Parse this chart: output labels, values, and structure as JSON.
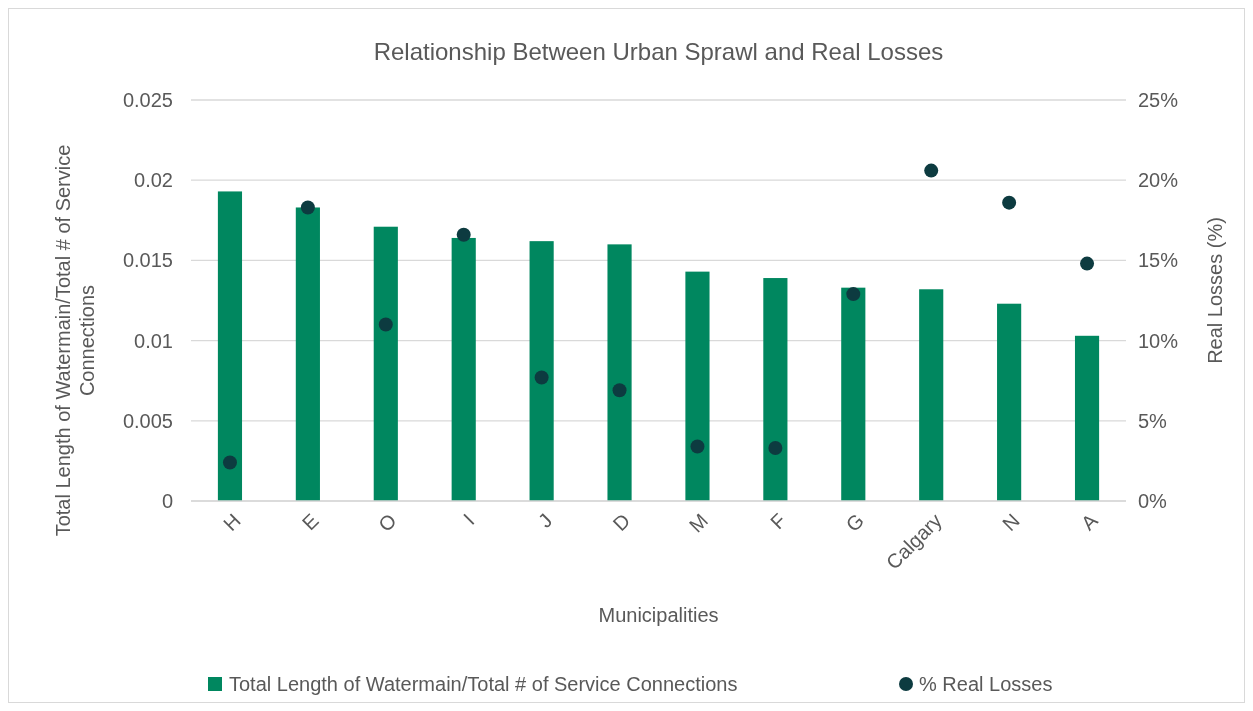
{
  "chart_data": {
    "type": "bar",
    "title": "Relationship Between Urban Sprawl and Real Losses",
    "xlabel": "Municipalities",
    "ylabel": "Total Length of Watermain/Total # of Service Connections",
    "y2label": "Real Losses (%)",
    "categories": [
      "H",
      "E",
      "O",
      "I",
      "J",
      "D",
      "M",
      "F",
      "G",
      "Calgary",
      "N",
      "A"
    ],
    "series": [
      {
        "name": "Total Length of Watermain/Total # of Service Connections",
        "color": "#00875f",
        "values": [
          0.0193,
          0.0183,
          0.0171,
          0.0164,
          0.0162,
          0.016,
          0.0143,
          0.0139,
          0.0133,
          0.0132,
          0.0123,
          0.0103
        ]
      },
      {
        "name": "% Real Losses",
        "type": "scatter",
        "axis": "y2",
        "color": "#0d3b40",
        "values": [
          2.4,
          18.3,
          11.0,
          16.6,
          7.7,
          6.9,
          3.4,
          3.3,
          12.9,
          20.6,
          18.6,
          14.8
        ]
      }
    ],
    "ylim": [
      0,
      0.025
    ],
    "yticks": [
      0,
      0.005,
      0.01,
      0.015,
      0.02,
      0.025
    ],
    "y2lim": [
      0,
      25
    ],
    "y2ticks": [
      {
        "value": 0,
        "label": "0%"
      },
      {
        "value": 5,
        "label": "5%"
      },
      {
        "value": 10,
        "label": "10%"
      },
      {
        "value": 15,
        "label": "15%"
      },
      {
        "value": 20,
        "label": "20%"
      },
      {
        "value": 25,
        "label": "25%"
      }
    ],
    "grid": "y",
    "legend": "bottom",
    "marker": "circle"
  }
}
